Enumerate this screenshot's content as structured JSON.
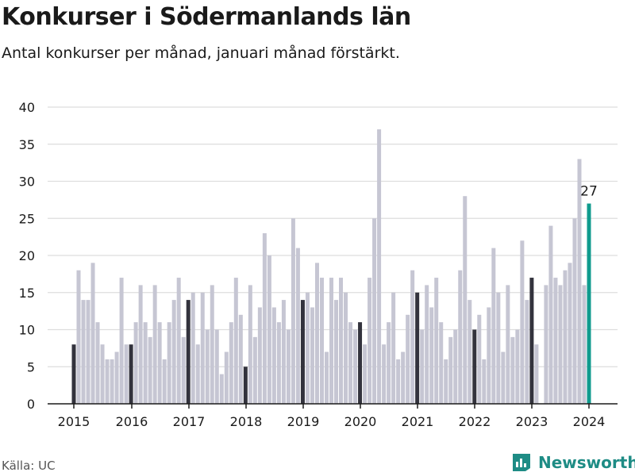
{
  "title": "Konkurser i Södermanlands län",
  "subtitle": "Antal konkurser per månad, januari månad förstärkt.",
  "source": "Källa: UC",
  "brand": "Newsworthy",
  "colors": {
    "bar": "#c6c6d3",
    "january": "#33333d",
    "highlight": "#109b8e",
    "grid": "#dddddd",
    "axis": "#1a1a1a",
    "brand": "#1e8c85"
  },
  "chart_data": {
    "type": "bar",
    "title": "Konkurser i Södermanlands län",
    "subtitle": "Antal konkurser per månad, januari månad förstärkt.",
    "xlabel": "",
    "ylabel": "",
    "ylim": [
      0,
      40
    ],
    "yticks": [
      0,
      5,
      10,
      15,
      20,
      25,
      30,
      35,
      40
    ],
    "start_year": 2015,
    "xticks": [
      "2015",
      "2016",
      "2017",
      "2018",
      "2019",
      "2020",
      "2021",
      "2022",
      "2023",
      "2024"
    ],
    "grid": true,
    "annotation": {
      "label": "27",
      "index": 108
    },
    "values": [
      8,
      18,
      14,
      14,
      19,
      11,
      8,
      6,
      6,
      7,
      17,
      8,
      8,
      11,
      16,
      11,
      9,
      16,
      11,
      6,
      11,
      14,
      17,
      9,
      14,
      15,
      8,
      15,
      10,
      16,
      10,
      4,
      7,
      11,
      17,
      12,
      5,
      16,
      9,
      13,
      23,
      20,
      13,
      11,
      14,
      10,
      25,
      21,
      14,
      15,
      13,
      19,
      17,
      7,
      17,
      14,
      17,
      15,
      11,
      10,
      11,
      8,
      17,
      25,
      37,
      8,
      11,
      15,
      6,
      7,
      12,
      18,
      15,
      10,
      16,
      13,
      17,
      11,
      6,
      9,
      10,
      18,
      28,
      14,
      10,
      12,
      6,
      13,
      21,
      15,
      7,
      16,
      9,
      10,
      22,
      14,
      17,
      8,
      0,
      16,
      24,
      17,
      16,
      18,
      19,
      25,
      33,
      16,
      27
    ]
  }
}
